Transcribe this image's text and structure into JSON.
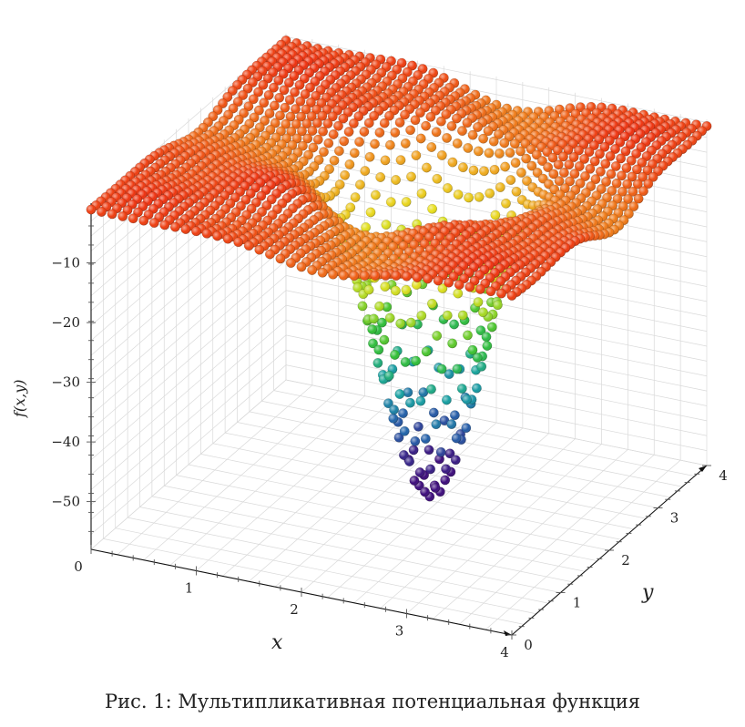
{
  "caption": "Рис. 1: Мультипликативная потенциальная функция",
  "chart_data": {
    "type": "scatter",
    "subtype": "3d-surface-points",
    "xlabel": "x",
    "ylabel": "y",
    "zlabel": "f(x,y)",
    "xlim": [
      0,
      4
    ],
    "ylim": [
      0,
      4
    ],
    "zlim": [
      -58,
      0
    ],
    "x_ticks": [
      "0",
      "1",
      "2",
      "3",
      "4"
    ],
    "y_ticks": [
      "0",
      "1",
      "2",
      "3",
      "4"
    ],
    "z_ticks": [
      "−10",
      "−20",
      "−30",
      "−40",
      "−50"
    ],
    "z_tick_values": [
      -10,
      -20,
      -30,
      -40,
      -50
    ],
    "grid": true,
    "colormap": [
      "#3b0a7a",
      "#1f5ea8",
      "#13a0a0",
      "#2fbf2f",
      "#a6d81f",
      "#e8e01a",
      "#f0a21a",
      "#ee2a0c"
    ],
    "global_minimum": {
      "x": 2.2,
      "y": 2.2,
      "z": -52
    },
    "surface_max": 0
  }
}
